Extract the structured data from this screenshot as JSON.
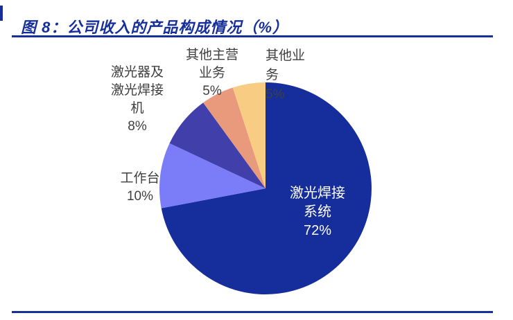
{
  "figure": {
    "title": "图 8：公司收入的产品构成情况（%）",
    "accent_color": "#172F9B",
    "label_text_color": "#3F3F3F"
  },
  "chart_data": {
    "type": "pie",
    "title": "公司收入的产品构成情况（%）",
    "unit": "%",
    "start_angle": "12-oclock",
    "direction": "clockwise",
    "legend_position": "none",
    "categories": [
      "激光焊接系统",
      "工作台",
      "激光器及激光焊接机",
      "其他主营业务",
      "其他业务"
    ],
    "values": [
      72,
      10,
      8,
      5,
      5
    ],
    "colors": [
      "#162E9C",
      "#7B7CF8",
      "#4140AB",
      "#E99A7C",
      "#F8CC82"
    ],
    "labels": [
      {
        "text": "激光焊接\n系统\n72%",
        "color": "#FFFFFF"
      },
      {
        "text": "工作台\n10%",
        "color": "#3F3F3F"
      },
      {
        "text": "激光器及\n激光焊接\n机\n8%",
        "color": "#3F3F3F"
      },
      {
        "text": "其他主营\n业务\n5%",
        "color": "#3F3F3F"
      },
      {
        "text": "其他业\n务\n5%",
        "color": "#3F3F3F"
      }
    ]
  }
}
